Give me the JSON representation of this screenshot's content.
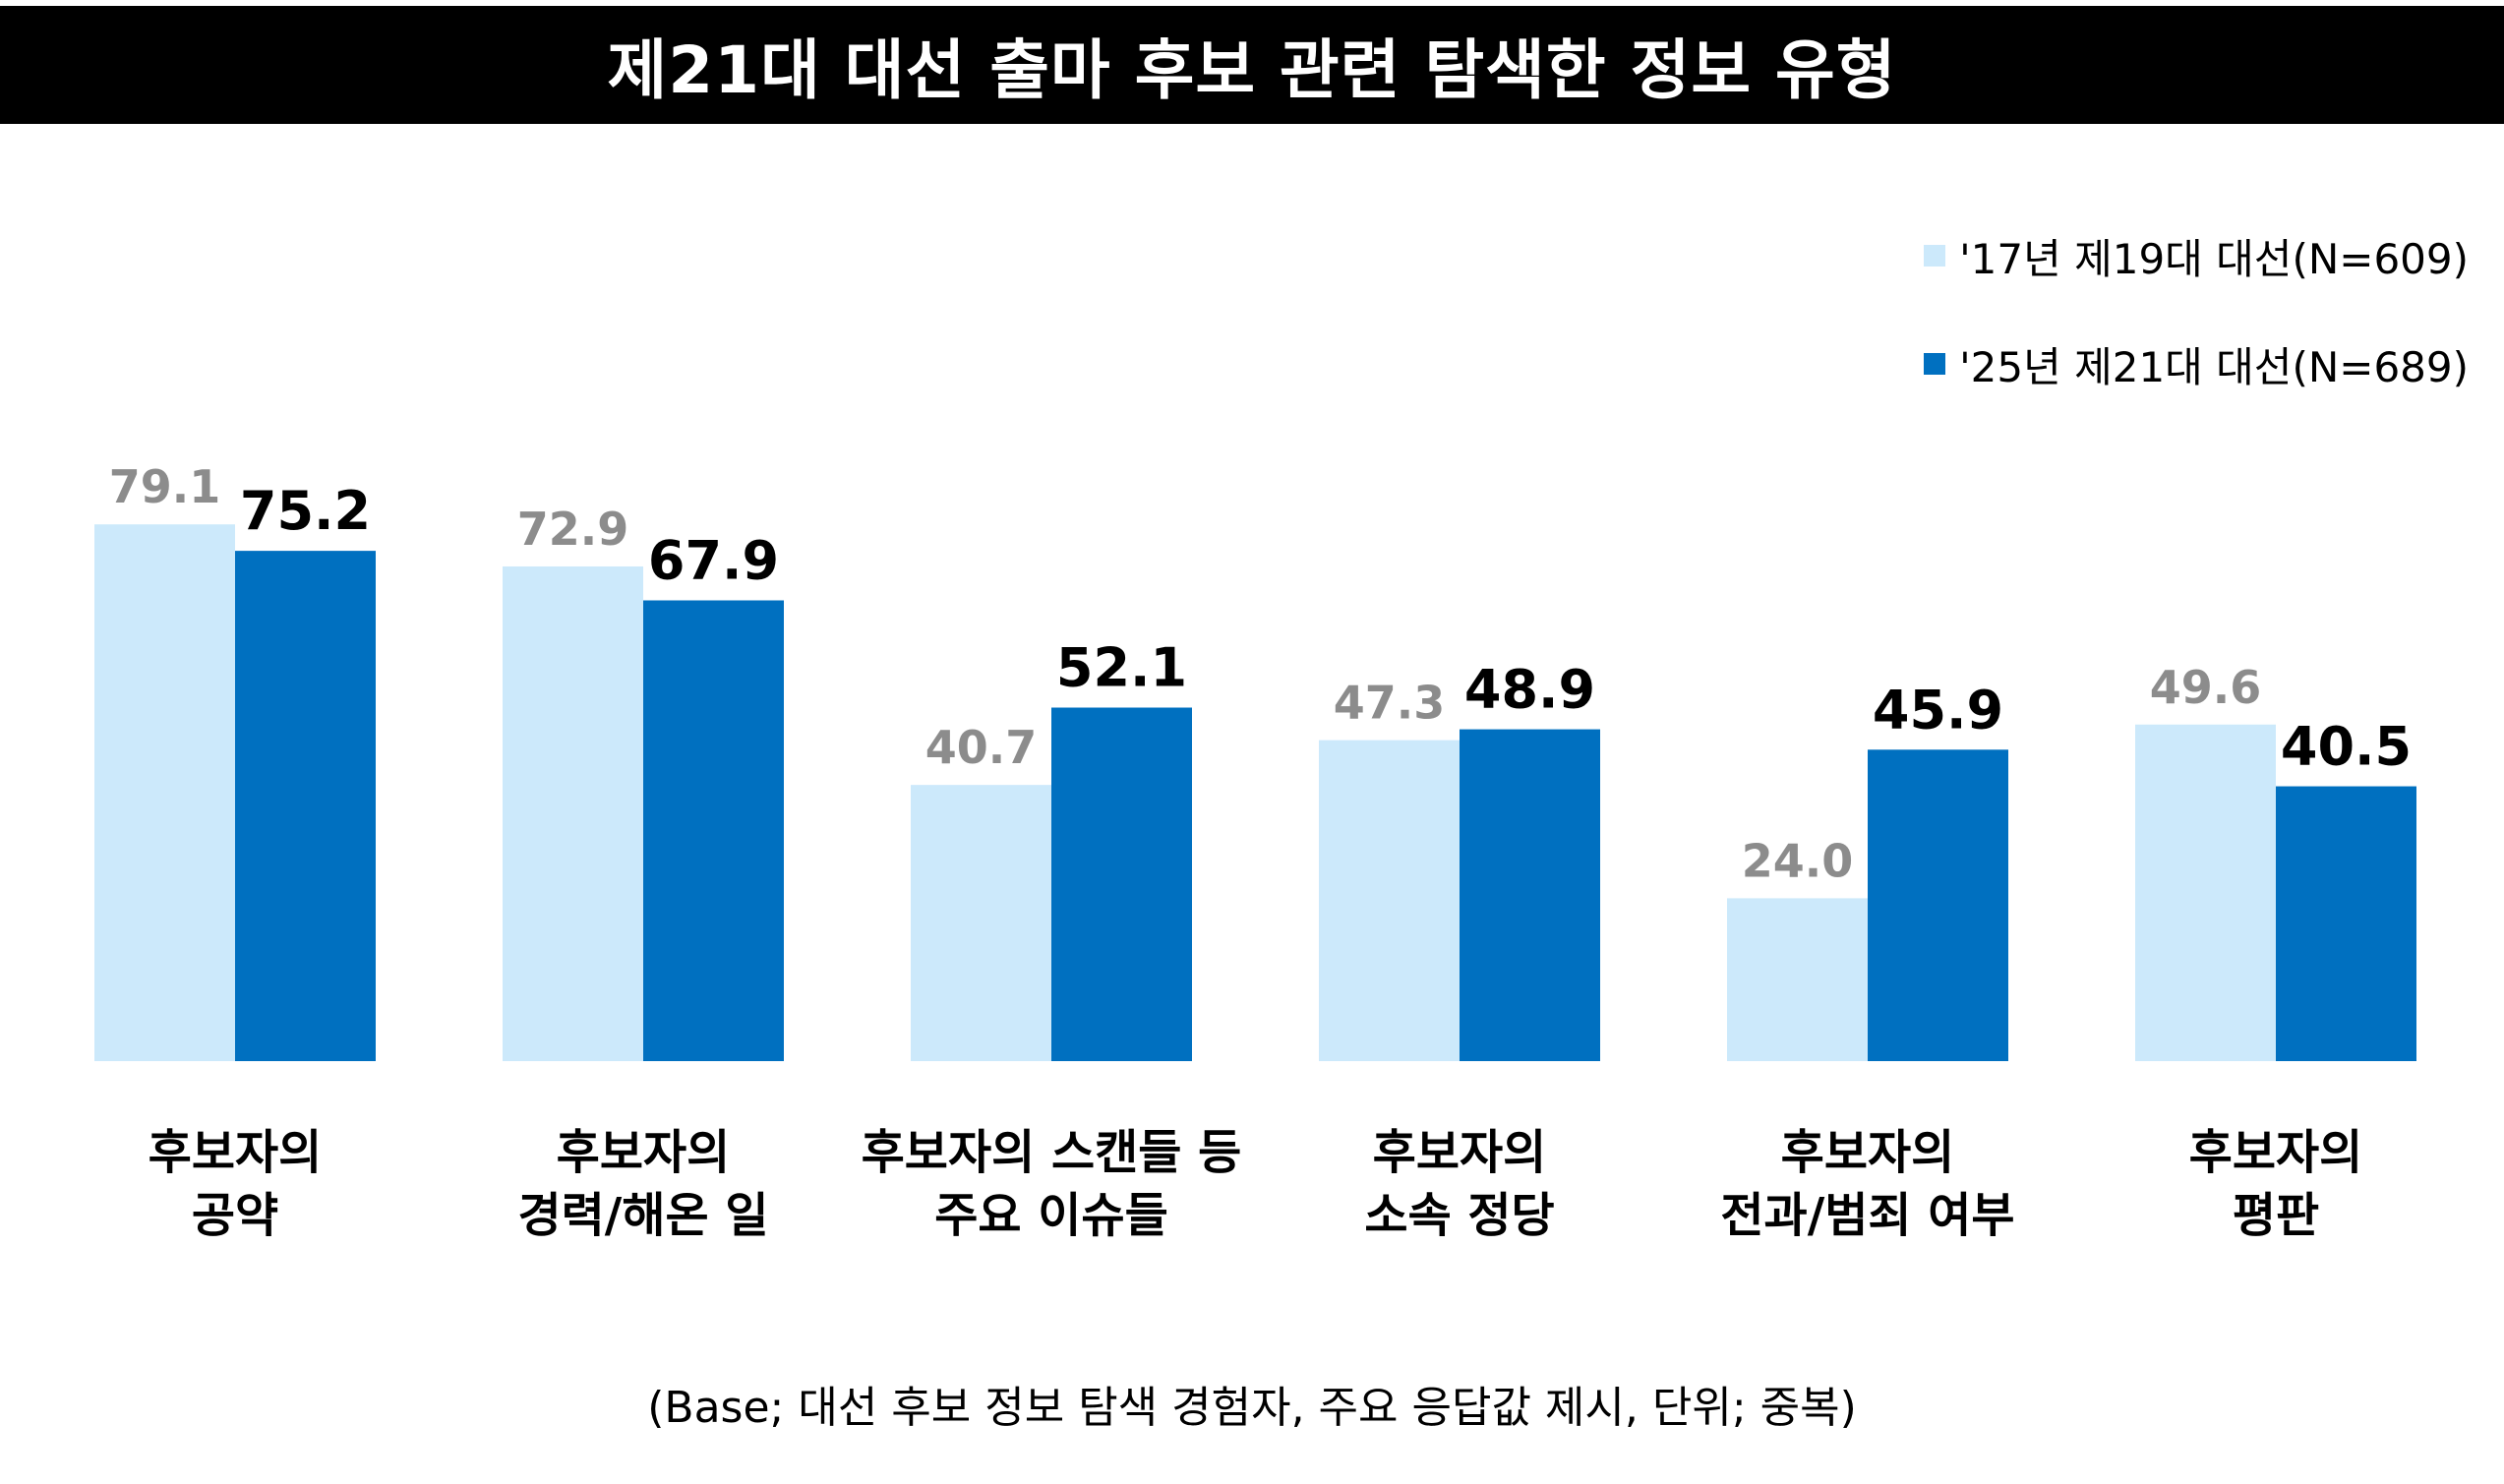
{
  "chart_data": {
    "type": "bar",
    "title": "제21대 대선 출마 후보 관련 탐색한 정보 유형",
    "categories": [
      [
        "후보자의",
        "공약"
      ],
      [
        "후보자의",
        "경력/해온 일"
      ],
      [
        "후보자의 스캔들 등",
        "주요 이슈들"
      ],
      [
        "후보자의",
        "소속 정당"
      ],
      [
        "후보자의",
        "전과/범죄 여부"
      ],
      [
        "후보자의",
        "평판"
      ]
    ],
    "series": [
      {
        "name": "'17년 제19대 대선(N=609)",
        "values": [
          79.1,
          72.9,
          40.7,
          47.3,
          24.0,
          49.6
        ],
        "labels": [
          "79.1",
          "72.9",
          "40.7",
          "47.3",
          "24.0",
          "49.6"
        ],
        "color": "#cce9fb",
        "label_color": "#8c8c8c"
      },
      {
        "name": "'25년 제21대 대선(N=689)",
        "values": [
          75.2,
          67.9,
          52.1,
          48.9,
          45.9,
          40.5
        ],
        "labels": [
          "75.2",
          "67.9",
          "52.1",
          "48.9",
          "45.9",
          "40.5"
        ],
        "color": "#0070c0",
        "label_color": "#000000"
      }
    ],
    "ylim": [
      0,
      100
    ],
    "grid": false,
    "legend_position": "top-right"
  },
  "footnote": "(Base; 대선 후보 정보 탐색 경험자, 주요 응답값 제시, 단위; 중복)"
}
